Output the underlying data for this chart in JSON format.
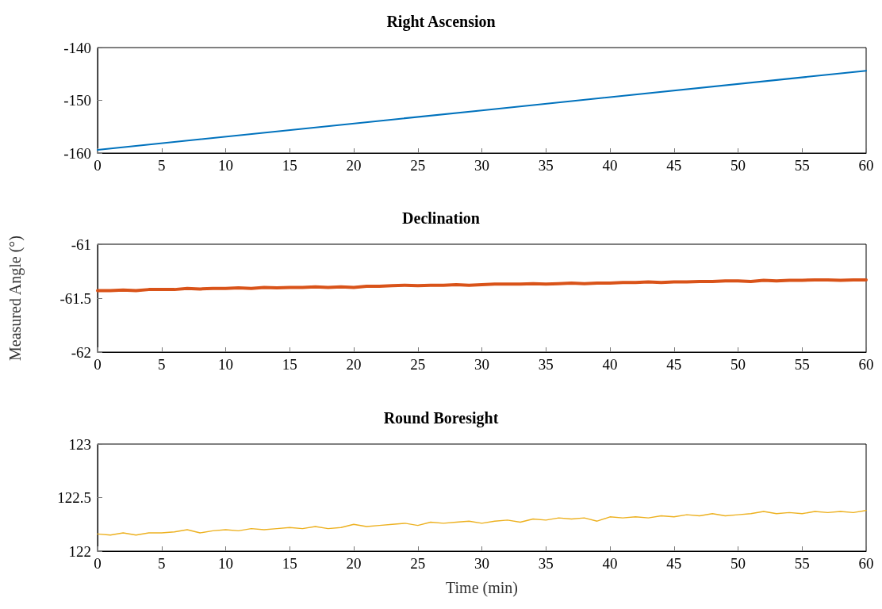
{
  "chart_data": [
    {
      "type": "line",
      "title": "Right Ascension",
      "marker": "none",
      "line_style": "solid",
      "grid": false,
      "xlim": [
        0,
        60
      ],
      "xticks": [
        0,
        5,
        10,
        15,
        20,
        25,
        30,
        35,
        40,
        45,
        50,
        55,
        60
      ],
      "ylim": [
        -160,
        -140
      ],
      "yticks": [
        -160,
        -150,
        -140
      ],
      "x": [
        0,
        30,
        60
      ],
      "series": [
        {
          "color": "#0072bd",
          "values": [
            -159.4,
            -151.9,
            -144.4
          ]
        }
      ]
    },
    {
      "type": "line",
      "title": "Declination",
      "ylabel": "Measured Angle (°)",
      "marker": "none",
      "line_style": "solid",
      "grid": false,
      "xlim": [
        0,
        60
      ],
      "xticks": [
        0,
        5,
        10,
        15,
        20,
        25,
        30,
        35,
        40,
        45,
        50,
        55,
        60
      ],
      "ylim": [
        -62,
        -61
      ],
      "yticks": [
        -62,
        -61.5,
        -61
      ],
      "x": [
        0,
        1,
        2,
        3,
        4,
        5,
        6,
        7,
        8,
        9,
        10,
        11,
        12,
        13,
        14,
        15,
        16,
        17,
        18,
        19,
        20,
        21,
        22,
        23,
        24,
        25,
        26,
        27,
        28,
        29,
        30,
        31,
        32,
        33,
        34,
        35,
        36,
        37,
        38,
        39,
        40,
        41,
        42,
        43,
        44,
        45,
        46,
        47,
        48,
        49,
        50,
        51,
        52,
        53,
        54,
        55,
        56,
        57,
        58,
        59,
        60
      ],
      "series": [
        {
          "color": "#d95319",
          "values": [
            -61.43,
            -61.43,
            -61.425,
            -61.43,
            -61.42,
            -61.42,
            -61.42,
            -61.41,
            -61.415,
            -61.41,
            -61.41,
            -61.405,
            -61.41,
            -61.4,
            -61.405,
            -61.4,
            -61.4,
            -61.395,
            -61.4,
            -61.395,
            -61.4,
            -61.39,
            -61.39,
            -61.385,
            -61.38,
            -61.385,
            -61.38,
            -61.38,
            -61.375,
            -61.38,
            -61.375,
            -61.37,
            -61.37,
            -61.37,
            -61.365,
            -61.37,
            -61.365,
            -61.36,
            -61.365,
            -61.36,
            -61.36,
            -61.355,
            -61.355,
            -61.35,
            -61.355,
            -61.35,
            -61.35,
            -61.345,
            -61.345,
            -61.34,
            -61.34,
            -61.345,
            -61.335,
            -61.34,
            -61.335,
            -61.335,
            -61.33,
            -61.33,
            -61.335,
            -61.33,
            -61.33
          ]
        }
      ]
    },
    {
      "type": "line",
      "title": "Round Boresight",
      "xlabel": "Time (min)",
      "marker": "none",
      "line_style": "solid",
      "grid": false,
      "xlim": [
        0,
        60
      ],
      "xticks": [
        0,
        5,
        10,
        15,
        20,
        25,
        30,
        35,
        40,
        45,
        50,
        55,
        60
      ],
      "ylim": [
        122,
        123
      ],
      "yticks": [
        122,
        122.5,
        123
      ],
      "x": [
        0,
        1,
        2,
        3,
        4,
        5,
        6,
        7,
        8,
        9,
        10,
        11,
        12,
        13,
        14,
        15,
        16,
        17,
        18,
        19,
        20,
        21,
        22,
        23,
        24,
        25,
        26,
        27,
        28,
        29,
        30,
        31,
        32,
        33,
        34,
        35,
        36,
        37,
        38,
        39,
        40,
        41,
        42,
        43,
        44,
        45,
        46,
        47,
        48,
        49,
        50,
        51,
        52,
        53,
        54,
        55,
        56,
        57,
        58,
        59,
        60
      ],
      "series": [
        {
          "color": "#edb120",
          "values": [
            122.16,
            122.15,
            122.17,
            122.15,
            122.17,
            122.17,
            122.18,
            122.2,
            122.17,
            122.19,
            122.2,
            122.19,
            122.21,
            122.2,
            122.21,
            122.22,
            122.21,
            122.23,
            122.21,
            122.22,
            122.25,
            122.23,
            122.24,
            122.25,
            122.26,
            122.24,
            122.27,
            122.26,
            122.27,
            122.28,
            122.26,
            122.28,
            122.29,
            122.27,
            122.3,
            122.29,
            122.31,
            122.3,
            122.31,
            122.28,
            122.32,
            122.31,
            122.32,
            122.31,
            122.33,
            122.32,
            122.34,
            122.33,
            122.35,
            122.33,
            122.34,
            122.35,
            122.37,
            122.35,
            122.36,
            122.35,
            122.37,
            122.36,
            122.37,
            122.36,
            122.38
          ]
        }
      ]
    }
  ]
}
